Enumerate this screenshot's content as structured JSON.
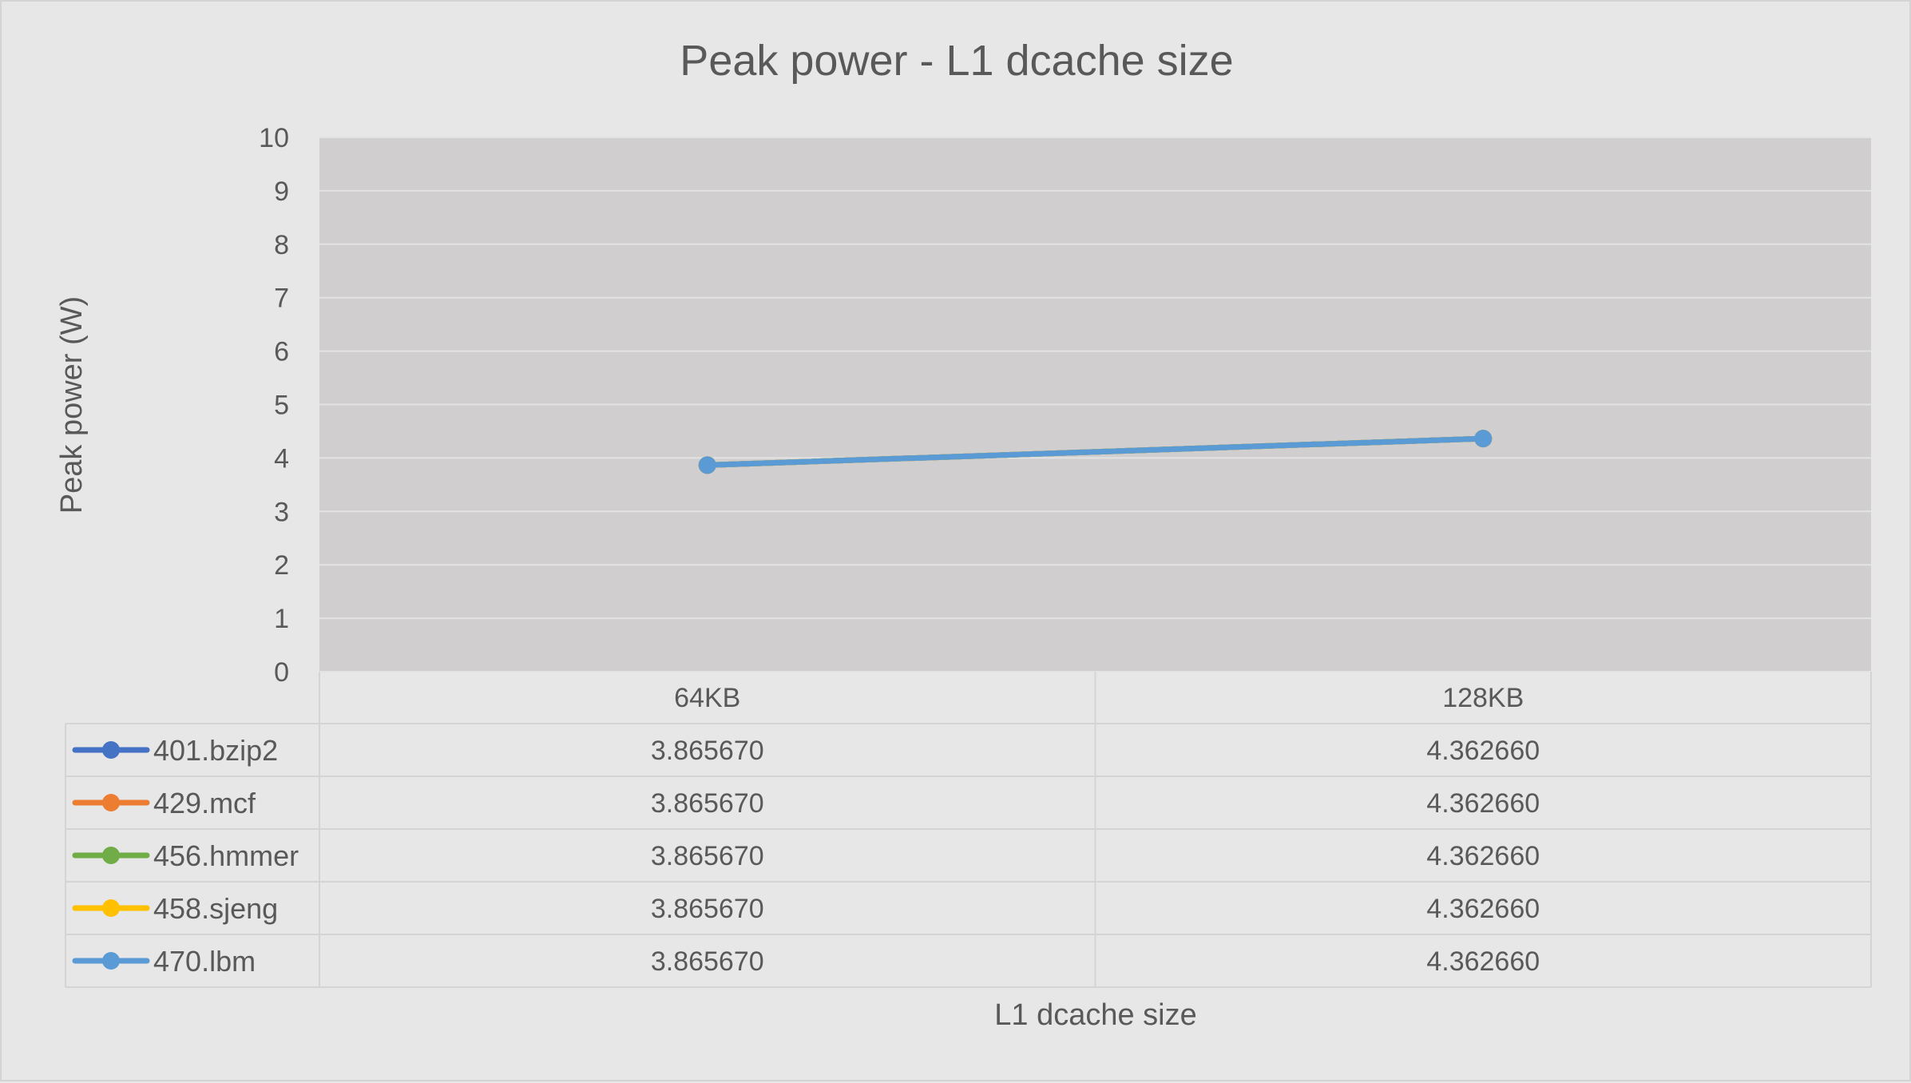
{
  "chart_data": {
    "type": "line",
    "title": "Peak power - L1 dcache size",
    "xlabel": "L1 dcache size",
    "ylabel": "Peak power (W)",
    "ylim": [
      0,
      10
    ],
    "yticks": [
      "0",
      "1",
      "2",
      "3",
      "4",
      "5",
      "6",
      "7",
      "8",
      "9",
      "10"
    ],
    "categories": [
      "64KB",
      "128KB"
    ],
    "grid": true,
    "legend": "data-table",
    "series": [
      {
        "name": "401.bzip2",
        "color": "#4472c4",
        "values": [
          3.86567,
          4.36266
        ],
        "labels": [
          "3.865670",
          "4.362660"
        ]
      },
      {
        "name": "429.mcf",
        "color": "#ed7d31",
        "values": [
          3.86567,
          4.36266
        ],
        "labels": [
          "3.865670",
          "4.362660"
        ]
      },
      {
        "name": "456.hmmer",
        "color": "#70ad47",
        "values": [
          3.86567,
          4.36266
        ],
        "labels": [
          "3.865670",
          "4.362660"
        ]
      },
      {
        "name": "458.sjeng",
        "color": "#ffc000",
        "values": [
          3.86567,
          4.36266
        ],
        "labels": [
          "3.865670",
          "4.362660"
        ]
      },
      {
        "name": "470.lbm",
        "color": "#5b9bd5",
        "values": [
          3.86567,
          4.36266
        ],
        "labels": [
          "3.865670",
          "4.362660"
        ]
      }
    ]
  }
}
